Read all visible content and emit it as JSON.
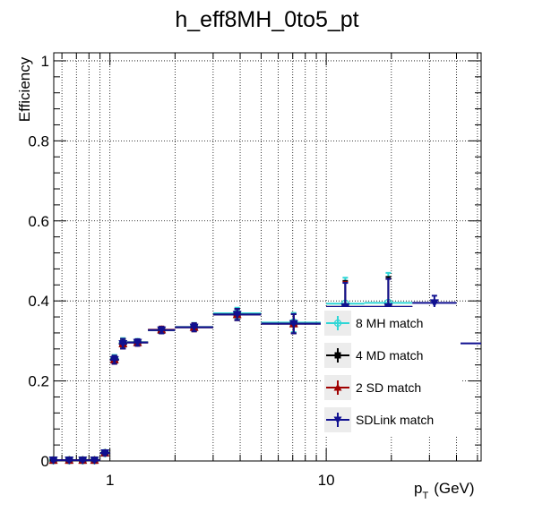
{
  "chart_data": {
    "type": "scatter",
    "title": "h_eff8MH_0to5_pt",
    "ylabel": "Efficiency",
    "xlabel_main": "p",
    "xlabel_sub": "T",
    "xlabel_unit": "(GeV)",
    "x_scale": "log",
    "xlim": [
      0.55,
      52
    ],
    "ylim": [
      0,
      1.02
    ],
    "grid": true,
    "x_ticks": [
      {
        "value": 1,
        "label": "1"
      },
      {
        "value": 10,
        "label": "10"
      }
    ],
    "y_ticks": [
      {
        "value": 0,
        "label": "0"
      },
      {
        "value": 0.2,
        "label": "0.2"
      },
      {
        "value": 0.4,
        "label": "0.4"
      },
      {
        "value": 0.6,
        "label": "0.6"
      },
      {
        "value": 0.8,
        "label": "0.8"
      },
      {
        "value": 1,
        "label": "1"
      }
    ],
    "legend_position": "bottom-right",
    "legend": [
      {
        "label": "8 MH match",
        "color": "#2fd6d6",
        "marker": "circle-open"
      },
      {
        "label": "4 MD match",
        "color": "#000000",
        "marker": "square"
      },
      {
        "label": "2 SD match",
        "color": "#a00000",
        "marker": "triangle-up"
      },
      {
        "label": "SDLink match",
        "color": "#101090",
        "marker": "triangle-down"
      }
    ],
    "series": [
      {
        "color": "#2fd6d6",
        "marker": "circle-open",
        "points": [
          {
            "x0": 0.5,
            "x1": 0.6,
            "y": 0.002,
            "e": 0.003
          },
          {
            "x0": 0.6,
            "x1": 0.7,
            "y": 0.002,
            "e": 0.003
          },
          {
            "x0": 0.7,
            "x1": 0.8,
            "y": 0.002,
            "e": 0.003
          },
          {
            "x0": 0.8,
            "x1": 0.9,
            "y": 0.002,
            "e": 0.003
          },
          {
            "x0": 0.9,
            "x1": 1.0,
            "y": 0.02,
            "e": 0.005
          },
          {
            "x0": 1.0,
            "x1": 1.1,
            "y": 0.255,
            "e": 0.01
          },
          {
            "x0": 1.1,
            "x1": 1.2,
            "y": 0.295,
            "e": 0.012
          },
          {
            "x0": 1.2,
            "x1": 1.5,
            "y": 0.297,
            "e": 0.008
          },
          {
            "x0": 1.5,
            "x1": 2.0,
            "y": 0.327,
            "e": 0.008
          },
          {
            "x0": 2.0,
            "x1": 3.0,
            "y": 0.335,
            "e": 0.01
          },
          {
            "x0": 3.0,
            "x1": 5.0,
            "y": 0.369,
            "e": 0.014
          },
          {
            "x0": 5.0,
            "x1": 10.0,
            "y": 0.346,
            "e": 0.024
          },
          {
            "x0": 10.0,
            "x1": 15.0,
            "y": 0.393,
            "e": 0.065
          },
          {
            "x0": 15.0,
            "x1": 25.0,
            "y": 0.395,
            "e": 0.075
          }
        ]
      },
      {
        "color": "#000000",
        "marker": "square",
        "points": [
          {
            "x0": 0.5,
            "x1": 0.6,
            "y": 0.002,
            "e": 0.003
          },
          {
            "x0": 0.6,
            "x1": 0.7,
            "y": 0.002,
            "e": 0.003
          },
          {
            "x0": 0.7,
            "x1": 0.8,
            "y": 0.002,
            "e": 0.003
          },
          {
            "x0": 0.8,
            "x1": 0.9,
            "y": 0.002,
            "e": 0.003
          },
          {
            "x0": 0.9,
            "x1": 1.0,
            "y": 0.02,
            "e": 0.005
          },
          {
            "x0": 1.0,
            "x1": 1.1,
            "y": 0.253,
            "e": 0.01
          },
          {
            "x0": 1.1,
            "x1": 1.2,
            "y": 0.293,
            "e": 0.012
          },
          {
            "x0": 1.2,
            "x1": 1.5,
            "y": 0.296,
            "e": 0.008
          },
          {
            "x0": 1.5,
            "x1": 2.0,
            "y": 0.327,
            "e": 0.008
          },
          {
            "x0": 2.0,
            "x1": 3.0,
            "y": 0.334,
            "e": 0.01
          },
          {
            "x0": 3.0,
            "x1": 5.0,
            "y": 0.366,
            "e": 0.014
          },
          {
            "x0": 5.0,
            "x1": 10.0,
            "y": 0.343,
            "e": 0.024
          },
          {
            "x0": 10.0,
            "x1": 15.0,
            "y": 0.385,
            "e": 0.065
          },
          {
            "x0": 15.0,
            "x1": 25.0,
            "y": 0.385,
            "e": 0.075
          }
        ]
      },
      {
        "color": "#a00000",
        "marker": "triangle-up",
        "points": [
          {
            "x0": 0.5,
            "x1": 0.6,
            "y": 0.002,
            "e": 0.003
          },
          {
            "x0": 0.6,
            "x1": 0.7,
            "y": 0.002,
            "e": 0.003
          },
          {
            "x0": 0.7,
            "x1": 0.8,
            "y": 0.002,
            "e": 0.003
          },
          {
            "x0": 0.8,
            "x1": 0.9,
            "y": 0.002,
            "e": 0.003
          },
          {
            "x0": 0.9,
            "x1": 1.0,
            "y": 0.02,
            "e": 0.005
          },
          {
            "x0": 1.0,
            "x1": 1.1,
            "y": 0.253,
            "e": 0.01
          },
          {
            "x0": 1.1,
            "x1": 1.2,
            "y": 0.293,
            "e": 0.012
          },
          {
            "x0": 1.2,
            "x1": 1.5,
            "y": 0.296,
            "e": 0.008
          },
          {
            "x0": 1.5,
            "x1": 2.0,
            "y": 0.328,
            "e": 0.008
          },
          {
            "x0": 2.0,
            "x1": 3.0,
            "y": 0.334,
            "e": 0.01
          },
          {
            "x0": 3.0,
            "x1": 5.0,
            "y": 0.366,
            "e": 0.014
          },
          {
            "x0": 5.0,
            "x1": 10.0,
            "y": 0.343,
            "e": 0.024
          },
          {
            "x0": 10.0,
            "x1": 15.0,
            "y": 0.385,
            "e": 0.062
          },
          {
            "x0": 15.0,
            "x1": 25.0,
            "y": 0.385,
            "e": 0.07
          }
        ]
      },
      {
        "color": "#101090",
        "marker": "triangle-down",
        "points": [
          {
            "x0": 0.5,
            "x1": 0.6,
            "y": 0.002,
            "e": 0.003
          },
          {
            "x0": 0.6,
            "x1": 0.7,
            "y": 0.002,
            "e": 0.003
          },
          {
            "x0": 0.7,
            "x1": 0.8,
            "y": 0.002,
            "e": 0.003
          },
          {
            "x0": 0.8,
            "x1": 0.9,
            "y": 0.002,
            "e": 0.003
          },
          {
            "x0": 0.9,
            "x1": 1.0,
            "y": 0.02,
            "e": 0.005
          },
          {
            "x0": 1.0,
            "x1": 1.1,
            "y": 0.253,
            "e": 0.01
          },
          {
            "x0": 1.1,
            "x1": 1.2,
            "y": 0.293,
            "e": 0.012
          },
          {
            "x0": 1.2,
            "x1": 1.5,
            "y": 0.296,
            "e": 0.008
          },
          {
            "x0": 1.5,
            "x1": 2.0,
            "y": 0.327,
            "e": 0.008
          },
          {
            "x0": 2.0,
            "x1": 3.0,
            "y": 0.334,
            "e": 0.01
          },
          {
            "x0": 3.0,
            "x1": 5.0,
            "y": 0.366,
            "e": 0.014
          },
          {
            "x0": 5.0,
            "x1": 10.0,
            "y": 0.343,
            "e": 0.024
          },
          {
            "x0": 10.0,
            "x1": 15.0,
            "y": 0.385,
            "e": 0.06
          },
          {
            "x0": 15.0,
            "x1": 25.0,
            "y": 0.385,
            "e": 0.07
          },
          {
            "x0": 25.0,
            "x1": 40.0,
            "y": 0.395,
            "e": 0.018
          },
          {
            "x0": 40.0,
            "x1": 60.0,
            "y": 0.294,
            "e": 0.0
          }
        ]
      }
    ]
  }
}
